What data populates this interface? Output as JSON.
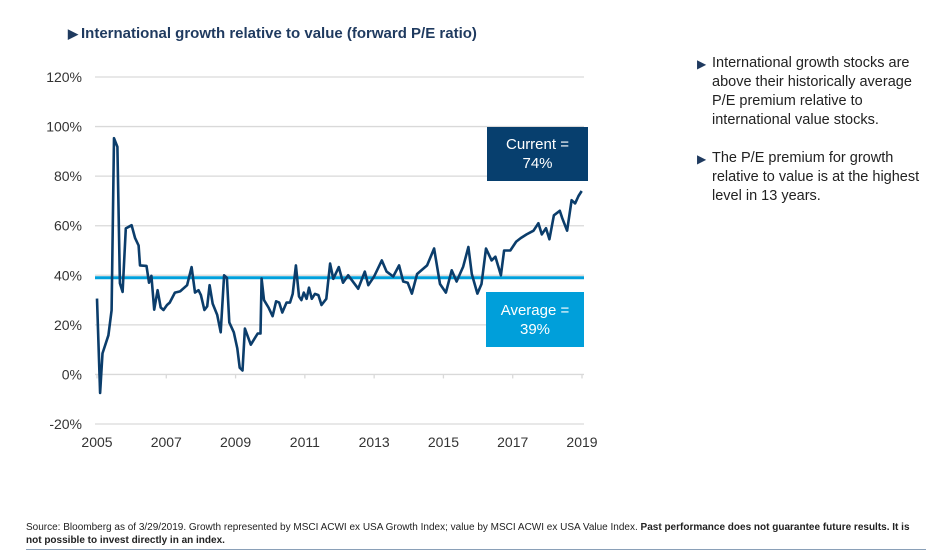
{
  "title": "International growth relative to value (forward P/E ratio)",
  "icons": {
    "bullet": "right-triangle-icon"
  },
  "colors": {
    "series": "#0b3d6b",
    "average": "#00a0dc",
    "current_box": "#073f6e",
    "average_box": "#009fda",
    "grid": "#d9d9d9"
  },
  "callouts": {
    "current_line1": "Current =",
    "current_line2": "74%",
    "average_line1": "Average =",
    "average_line2": "39%"
  },
  "bullets": [
    "International growth stocks are above their historically average P/E premium relative to international value stocks.",
    "The P/E premium for growth relative to value is at the highest level in 13 years."
  ],
  "footer": {
    "normal": "Source: Bloomberg as of 3/29/2019. Growth represented by MSCI ACWI ex USA Growth Index; value by MSCI ACWI ex USA Value Index. ",
    "bold": "Past performance does not guarantee future results. It is not possible to invest directly in an index."
  },
  "chart_data": {
    "type": "line",
    "title": "International growth relative to value (forward P/E ratio)",
    "xlabel": "",
    "ylabel": "",
    "xlim": [
      2005,
      2019
    ],
    "ylim": [
      -20,
      120
    ],
    "grid": true,
    "x_ticks": [
      "2005",
      "2007",
      "2009",
      "2011",
      "2013",
      "2015",
      "2017",
      "2019"
    ],
    "y_ticks": [
      "-20%",
      "0%",
      "20%",
      "40%",
      "60%",
      "80%",
      "100%",
      "120%"
    ],
    "average": 39,
    "current": 74,
    "series": [
      {
        "x": [
          2005.0,
          2005.09,
          2005.16,
          2005.33,
          2005.42,
          2005.49,
          2005.59,
          2005.66,
          2005.74,
          2005.83,
          2006.0,
          2006.1,
          2006.2,
          2006.24,
          2006.43,
          2006.5,
          2006.57,
          2006.65,
          2006.75,
          2006.84,
          2006.92,
          2007.02,
          2007.1,
          2007.25,
          2007.4,
          2007.6,
          2007.73,
          2007.83,
          2007.93,
          2008.0,
          2008.1,
          2008.18,
          2008.25,
          2008.34,
          2008.47,
          2008.57,
          2008.67,
          2008.75,
          2008.82,
          2008.95,
          2009.05,
          2009.12,
          2009.2,
          2009.27,
          2009.44,
          2009.64,
          2009.72,
          2009.75,
          2009.82,
          2009.95,
          2010.07,
          2010.17,
          2010.26,
          2010.35,
          2010.47,
          2010.57,
          2010.65,
          2010.74,
          2010.83,
          2010.9,
          2010.97,
          2011.05,
          2011.12,
          2011.2,
          2011.29,
          2011.39,
          2011.48,
          2011.62,
          2011.73,
          2011.82,
          2011.98,
          2012.1,
          2012.25,
          2012.54,
          2012.73,
          2012.83,
          2013.0,
          2013.22,
          2013.36,
          2013.55,
          2013.72,
          2013.84,
          2013.97,
          2014.09,
          2014.24,
          2014.53,
          2014.73,
          2014.9,
          2015.07,
          2015.24,
          2015.38,
          2015.57,
          2015.72,
          2015.82,
          2015.98,
          2016.1,
          2016.23,
          2016.39,
          2016.5,
          2016.66,
          2016.75,
          2016.93,
          2017.1,
          2017.23,
          2017.4,
          2017.6,
          2017.74,
          2017.84,
          2017.96,
          2018.06,
          2018.19,
          2018.36,
          2018.43,
          2018.57,
          2018.7,
          2018.8,
          2018.9,
          2018.99
        ],
        "values": [
          30.6,
          -7.5,
          8.5,
          15.8,
          25.9,
          95.3,
          91.8,
          36.8,
          33.3,
          58.9,
          60.2,
          55,
          52,
          44,
          43.8,
          37,
          39.8,
          26.1,
          34,
          27,
          26,
          28,
          29,
          33,
          33.5,
          36,
          43.3,
          33,
          34,
          32,
          26,
          27.5,
          36,
          28.5,
          24,
          17,
          40,
          39,
          21,
          17,
          10.5,
          2.7,
          1.6,
          18.5,
          12,
          16.5,
          16.5,
          38.7,
          30,
          27,
          23.5,
          29.5,
          29,
          25,
          29,
          29,
          32.5,
          44,
          31.5,
          30,
          33,
          30.5,
          35,
          30.5,
          32.5,
          32,
          28,
          30.5,
          44.7,
          38.6,
          43.3,
          37,
          40,
          34.6,
          41.5,
          36,
          39.5,
          46,
          41.5,
          39.5,
          44,
          37.5,
          37,
          32.6,
          40.5,
          44,
          50.8,
          36.5,
          33,
          42,
          37.5,
          43.5,
          51.4,
          40.5,
          32.6,
          36.5,
          50.8,
          46,
          47.5,
          40,
          50,
          50,
          53.6,
          55,
          56.5,
          58,
          61,
          56.5,
          59,
          54.5,
          64.2,
          66,
          63,
          58,
          70.3,
          69,
          72,
          74
        ]
      }
    ]
  }
}
